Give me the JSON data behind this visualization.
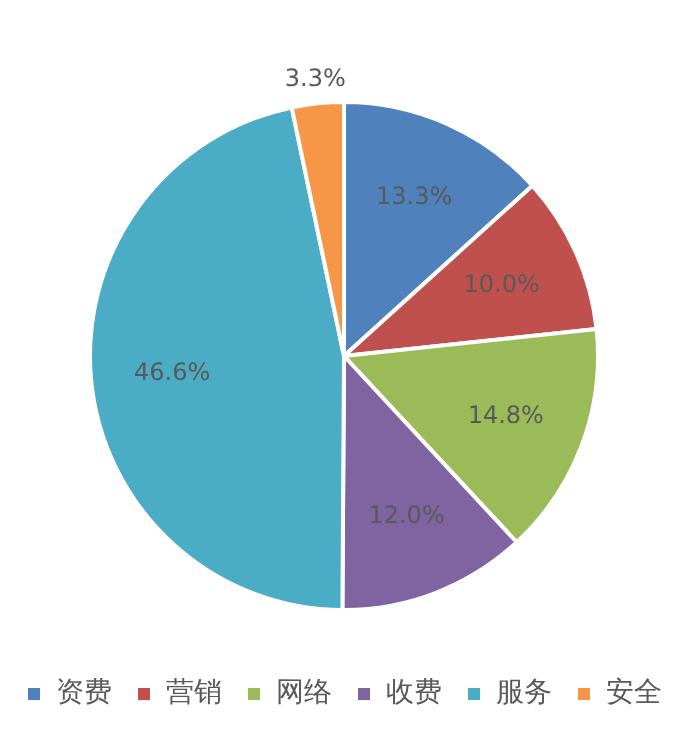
{
  "chart_data": {
    "type": "pie",
    "categories": [
      "资费",
      "营销",
      "网络",
      "收费",
      "服务",
      "安全"
    ],
    "values": [
      13.3,
      10.0,
      14.8,
      12.0,
      46.6,
      3.3
    ],
    "value_labels": [
      "13.3%",
      "10.0%",
      "14.8%",
      "12.0%",
      "46.6%",
      "3.3%"
    ],
    "colors": [
      "#4f81bd",
      "#c0504d",
      "#9bbb59",
      "#8064a2",
      "#4bacc6",
      "#f79646"
    ],
    "legend": "bottom"
  }
}
